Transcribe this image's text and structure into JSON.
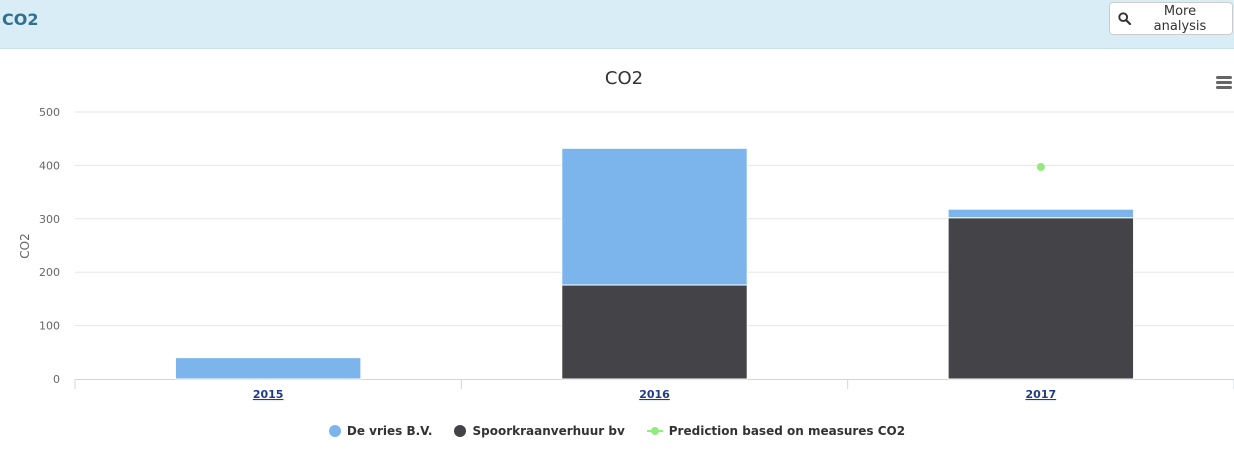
{
  "panel": {
    "title": "CO2",
    "more_button_label": "More analysis"
  },
  "icons": {
    "more_button": "search-icon",
    "chart_menu": "hamburger-menu-icon"
  },
  "chart_data": {
    "type": "bar",
    "stacked": true,
    "title": "CO2",
    "ylabel": "CO2",
    "xlabel": "",
    "categories": [
      "2015",
      "2016",
      "2017"
    ],
    "ylim": [
      0,
      500
    ],
    "yticks": [
      "0",
      "100",
      "200",
      "300",
      "400",
      "500"
    ],
    "grid": true,
    "legend_placement": "bottom-center",
    "series": [
      {
        "name": "Spoorkraanverhuur bv",
        "type": "bar",
        "color": "#434348",
        "values": [
          0,
          176,
          302
        ]
      },
      {
        "name": "De vries B.V.",
        "type": "bar",
        "color": "#7cb5ec",
        "values": [
          40,
          256,
          16
        ]
      },
      {
        "name": "Prediction based on measures CO2",
        "type": "scatter",
        "color": "#90ed7d",
        "values": [
          null,
          null,
          397
        ]
      }
    ],
    "legend_order": [
      "De vries B.V.",
      "Spoorkraanverhuur bv",
      "Prediction based on measures CO2"
    ]
  }
}
